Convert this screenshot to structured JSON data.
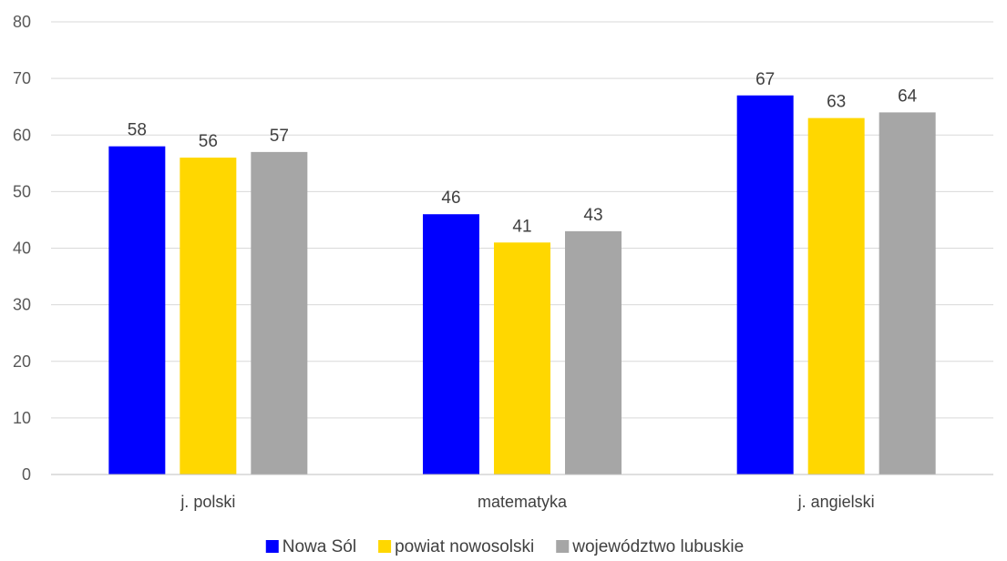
{
  "chart_data": {
    "type": "bar",
    "categories": [
      "j. polski",
      "matematyka",
      "j. angielski"
    ],
    "series": [
      {
        "name": "Nowa Sól",
        "color": "#0000ff",
        "values": [
          58,
          46,
          67
        ]
      },
      {
        "name": "powiat nowosolski",
        "color": "#ffd700",
        "values": [
          56,
          41,
          63
        ]
      },
      {
        "name": "województwo lubuskie",
        "color": "#a6a6a6",
        "values": [
          57,
          43,
          64
        ]
      }
    ],
    "ylim": [
      0,
      80
    ],
    "yticks": [
      0,
      10,
      20,
      30,
      40,
      50,
      60,
      70,
      80
    ],
    "grid": true,
    "data_labels": true,
    "legend_position": "bottom"
  }
}
